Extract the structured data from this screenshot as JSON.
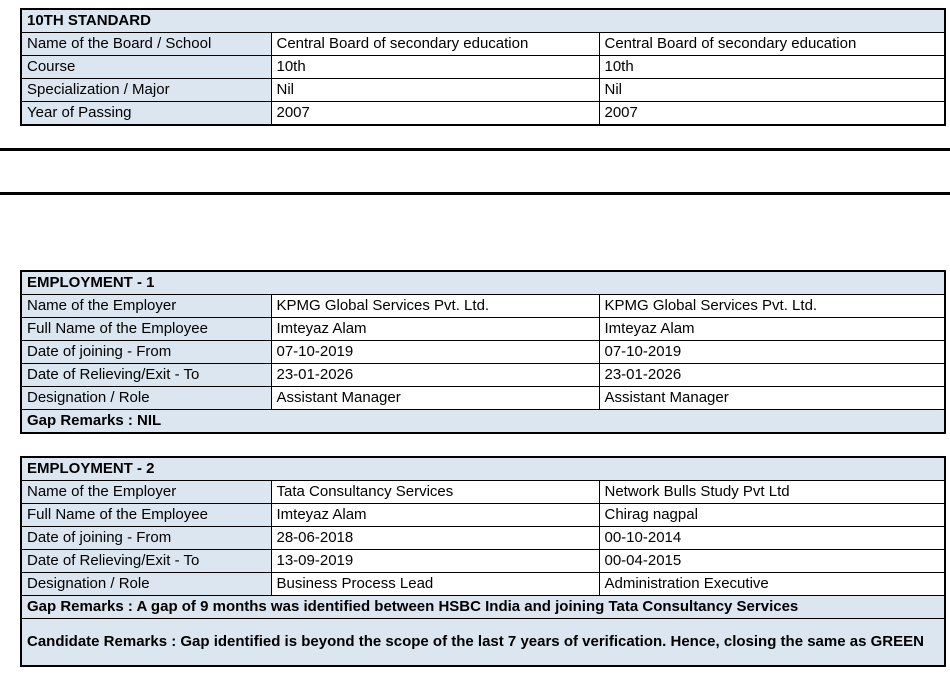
{
  "colors": {
    "header_bg": "#DCE6F1",
    "border": "#000000",
    "text": "#000000"
  },
  "tables": [
    {
      "title": "10TH STANDARD",
      "rows": [
        {
          "label": "Name of the Board / School",
          "value1": "Central Board of secondary education",
          "value2": "Central Board of secondary education"
        },
        {
          "label": "Course",
          "value1": "10th",
          "value2": "10th"
        },
        {
          "label": "Specialization / Major",
          "value1": "Nil",
          "value2": "Nil"
        },
        {
          "label": "Year of Passing",
          "value1": "2007",
          "value2": "2007"
        }
      ],
      "remarks": []
    },
    {
      "title": "EMPLOYMENT - 1",
      "rows": [
        {
          "label": "Name of the Employer",
          "value1": "KPMG Global Services Pvt. Ltd.",
          "value2": "KPMG Global Services Pvt. Ltd."
        },
        {
          "label": "Full Name of the Employee",
          "value1": "Imteyaz Alam",
          "value2": "Imteyaz Alam"
        },
        {
          "label": "Date of joining - From",
          "value1": "07-10-2019",
          "value2": "07-10-2019"
        },
        {
          "label": "Date of Relieving/Exit - To",
          "value1": "23-01-2026",
          "value2": "23-01-2026"
        },
        {
          "label": "Designation / Role",
          "value1": "Assistant Manager",
          "value2": "Assistant Manager"
        }
      ],
      "remarks": [
        "Gap Remarks : NIL"
      ]
    },
    {
      "title": "EMPLOYMENT - 2",
      "rows": [
        {
          "label": "Name of the Employer",
          "value1": "Tata Consultancy Services",
          "value2": "Network Bulls Study Pvt Ltd"
        },
        {
          "label": "Full Name of the Employee",
          "value1": "Imteyaz Alam",
          "value2": "Chirag nagpal"
        },
        {
          "label": "Date of joining - From",
          "value1": "28-06-2018",
          "value2": "00-10-2014"
        },
        {
          "label": "Date of Relieving/Exit - To",
          "value1": "13-09-2019",
          "value2": "00-04-2015"
        },
        {
          "label": "Designation / Role",
          "value1": "Business Process Lead",
          "value2": "Administration Executive"
        }
      ],
      "remarks": [
        "Gap Remarks : A gap of 9 months was identified between HSBC India and joining Tata Consultancy Services",
        "Candidate Remarks : Gap identified is beyond the scope of the last 7 years of verification. Hence, closing the same as GREEN"
      ]
    }
  ]
}
